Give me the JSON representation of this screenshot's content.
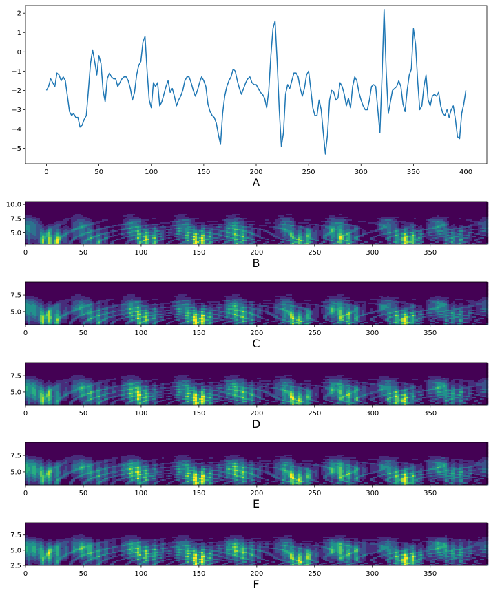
{
  "colormap": [
    "#440154",
    "#472d7b",
    "#3b528b",
    "#2c728e",
    "#21918c",
    "#28ae80",
    "#5ec962",
    "#addc30",
    "#fde725"
  ],
  "line_color": "#1f77b4",
  "chart_data": [
    {
      "type": "line",
      "panel_label": "A",
      "xlim": [
        -20,
        420
      ],
      "ylim": [
        -5.8,
        2.4
      ],
      "xticks": [
        0,
        50,
        100,
        150,
        200,
        250,
        300,
        350,
        400
      ],
      "yticks": [
        -5,
        -4,
        -3,
        -2,
        -1,
        0,
        1,
        2
      ],
      "grid": false,
      "series": [
        {
          "points": [
            [
              0,
              -2.0
            ],
            [
              2,
              -1.8
            ],
            [
              4,
              -1.4
            ],
            [
              6,
              -1.6
            ],
            [
              8,
              -1.8
            ],
            [
              10,
              -1.1
            ],
            [
              12,
              -1.2
            ],
            [
              14,
              -1.5
            ],
            [
              16,
              -1.3
            ],
            [
              18,
              -1.5
            ],
            [
              20,
              -2.3
            ],
            [
              22,
              -3.1
            ],
            [
              24,
              -3.3
            ],
            [
              26,
              -3.2
            ],
            [
              28,
              -3.4
            ],
            [
              30,
              -3.4
            ],
            [
              32,
              -3.9
            ],
            [
              34,
              -3.8
            ],
            [
              36,
              -3.5
            ],
            [
              38,
              -3.3
            ],
            [
              40,
              -2.0
            ],
            [
              42,
              -0.6
            ],
            [
              44,
              0.1
            ],
            [
              46,
              -0.5
            ],
            [
              48,
              -1.2
            ],
            [
              50,
              -0.2
            ],
            [
              52,
              -0.6
            ],
            [
              54,
              -2.0
            ],
            [
              56,
              -2.6
            ],
            [
              58,
              -1.4
            ],
            [
              60,
              -1.1
            ],
            [
              62,
              -1.3
            ],
            [
              64,
              -1.4
            ],
            [
              66,
              -1.4
            ],
            [
              68,
              -1.8
            ],
            [
              70,
              -1.6
            ],
            [
              72,
              -1.4
            ],
            [
              74,
              -1.3
            ],
            [
              76,
              -1.3
            ],
            [
              78,
              -1.5
            ],
            [
              80,
              -1.9
            ],
            [
              82,
              -2.5
            ],
            [
              84,
              -2.1
            ],
            [
              86,
              -1.2
            ],
            [
              88,
              -0.7
            ],
            [
              90,
              -0.5
            ],
            [
              92,
              0.5
            ],
            [
              94,
              0.8
            ],
            [
              96,
              -1.0
            ],
            [
              98,
              -2.5
            ],
            [
              100,
              -2.9
            ],
            [
              102,
              -1.6
            ],
            [
              104,
              -1.8
            ],
            [
              106,
              -1.6
            ],
            [
              108,
              -2.8
            ],
            [
              110,
              -2.6
            ],
            [
              112,
              -2.2
            ],
            [
              114,
              -1.8
            ],
            [
              116,
              -1.5
            ],
            [
              118,
              -2.1
            ],
            [
              120,
              -1.9
            ],
            [
              122,
              -2.3
            ],
            [
              124,
              -2.8
            ],
            [
              126,
              -2.5
            ],
            [
              128,
              -2.3
            ],
            [
              130,
              -2.0
            ],
            [
              132,
              -1.5
            ],
            [
              134,
              -1.3
            ],
            [
              136,
              -1.3
            ],
            [
              138,
              -1.6
            ],
            [
              140,
              -2.0
            ],
            [
              142,
              -2.3
            ],
            [
              144,
              -2.0
            ],
            [
              146,
              -1.6
            ],
            [
              148,
              -1.3
            ],
            [
              150,
              -1.5
            ],
            [
              152,
              -1.8
            ],
            [
              154,
              -2.7
            ],
            [
              156,
              -3.1
            ],
            [
              158,
              -3.3
            ],
            [
              160,
              -3.4
            ],
            [
              162,
              -3.7
            ],
            [
              164,
              -4.3
            ],
            [
              166,
              -4.8
            ],
            [
              168,
              -3.2
            ],
            [
              170,
              -2.3
            ],
            [
              172,
              -1.8
            ],
            [
              174,
              -1.5
            ],
            [
              176,
              -1.3
            ],
            [
              178,
              -0.9
            ],
            [
              180,
              -1.0
            ],
            [
              182,
              -1.5
            ],
            [
              184,
              -1.9
            ],
            [
              186,
              -2.2
            ],
            [
              188,
              -1.9
            ],
            [
              190,
              -1.6
            ],
            [
              192,
              -1.4
            ],
            [
              194,
              -1.3
            ],
            [
              196,
              -1.6
            ],
            [
              198,
              -1.7
            ],
            [
              200,
              -1.7
            ],
            [
              202,
              -1.9
            ],
            [
              204,
              -2.1
            ],
            [
              206,
              -2.2
            ],
            [
              208,
              -2.4
            ],
            [
              210,
              -2.9
            ],
            [
              212,
              -2.0
            ],
            [
              214,
              -0.2
            ],
            [
              216,
              1.2
            ],
            [
              218,
              1.6
            ],
            [
              220,
              -0.5
            ],
            [
              222,
              -3.0
            ],
            [
              224,
              -4.9
            ],
            [
              226,
              -4.2
            ],
            [
              228,
              -2.2
            ],
            [
              230,
              -1.7
            ],
            [
              232,
              -1.9
            ],
            [
              234,
              -1.5
            ],
            [
              236,
              -1.1
            ],
            [
              238,
              -1.1
            ],
            [
              240,
              -1.3
            ],
            [
              242,
              -1.9
            ],
            [
              244,
              -2.3
            ],
            [
              246,
              -1.9
            ],
            [
              248,
              -1.2
            ],
            [
              250,
              -1.0
            ],
            [
              252,
              -1.9
            ],
            [
              254,
              -2.9
            ],
            [
              256,
              -3.3
            ],
            [
              258,
              -3.3
            ],
            [
              260,
              -2.5
            ],
            [
              262,
              -3.0
            ],
            [
              264,
              -4.2
            ],
            [
              266,
              -5.3
            ],
            [
              268,
              -4.3
            ],
            [
              270,
              -2.5
            ],
            [
              272,
              -2.0
            ],
            [
              274,
              -2.1
            ],
            [
              276,
              -2.5
            ],
            [
              278,
              -2.4
            ],
            [
              280,
              -1.6
            ],
            [
              282,
              -1.8
            ],
            [
              284,
              -2.2
            ],
            [
              286,
              -2.8
            ],
            [
              288,
              -2.4
            ],
            [
              290,
              -2.9
            ],
            [
              292,
              -1.8
            ],
            [
              294,
              -1.3
            ],
            [
              296,
              -1.5
            ],
            [
              298,
              -2.1
            ],
            [
              300,
              -2.5
            ],
            [
              302,
              -2.8
            ],
            [
              304,
              -3.0
            ],
            [
              306,
              -3.0
            ],
            [
              308,
              -2.5
            ],
            [
              310,
              -1.8
            ],
            [
              312,
              -1.7
            ],
            [
              314,
              -1.8
            ],
            [
              316,
              -3.0
            ],
            [
              318,
              -4.2
            ],
            [
              320,
              -1.3
            ],
            [
              322,
              2.2
            ],
            [
              324,
              -1.0
            ],
            [
              326,
              -3.2
            ],
            [
              328,
              -2.6
            ],
            [
              330,
              -2.0
            ],
            [
              332,
              -1.9
            ],
            [
              334,
              -1.8
            ],
            [
              336,
              -1.5
            ],
            [
              338,
              -1.8
            ],
            [
              340,
              -2.7
            ],
            [
              342,
              -3.1
            ],
            [
              344,
              -2.0
            ],
            [
              346,
              -1.2
            ],
            [
              348,
              -0.9
            ],
            [
              350,
              1.2
            ],
            [
              352,
              0.4
            ],
            [
              354,
              -1.5
            ],
            [
              356,
              -3.0
            ],
            [
              358,
              -2.8
            ],
            [
              360,
              -1.8
            ],
            [
              362,
              -1.2
            ],
            [
              364,
              -2.5
            ],
            [
              366,
              -2.8
            ],
            [
              368,
              -2.3
            ],
            [
              370,
              -2.2
            ],
            [
              372,
              -2.3
            ],
            [
              374,
              -2.1
            ],
            [
              376,
              -2.8
            ],
            [
              378,
              -3.2
            ],
            [
              380,
              -3.3
            ],
            [
              382,
              -3.0
            ],
            [
              384,
              -3.4
            ],
            [
              386,
              -3.0
            ],
            [
              388,
              -2.8
            ],
            [
              390,
              -3.5
            ],
            [
              392,
              -4.4
            ],
            [
              394,
              -4.5
            ],
            [
              396,
              -3.2
            ],
            [
              398,
              -2.7
            ],
            [
              400,
              -2.0
            ]
          ]
        }
      ]
    },
    {
      "type": "heatmap",
      "panel_label": "B",
      "xlim": [
        0,
        399
      ],
      "ylim": [
        3.0,
        10.5
      ],
      "xticks": [
        0,
        50,
        100,
        150,
        200,
        250,
        300,
        350
      ],
      "yticks": [
        5.0,
        7.5,
        10.0
      ],
      "ytick_labels": [
        "5.0",
        "7.5",
        "10.0"
      ],
      "hotspots": [
        [
          22,
          3.6,
          0.9
        ],
        [
          60,
          3.8,
          0.5
        ],
        [
          105,
          3.8,
          0.8
        ],
        [
          150,
          3.6,
          0.95
        ],
        [
          185,
          4.0,
          0.6
        ],
        [
          238,
          3.6,
          0.75
        ],
        [
          275,
          3.9,
          0.7
        ],
        [
          330,
          3.6,
          0.9
        ],
        [
          372,
          4.0,
          0.5
        ]
      ]
    },
    {
      "type": "heatmap",
      "panel_label": "C",
      "xlim": [
        0,
        399
      ],
      "ylim": [
        3.0,
        9.5
      ],
      "xticks": [
        0,
        50,
        100,
        150,
        200,
        250,
        300,
        350
      ],
      "yticks": [
        5.0,
        7.5
      ],
      "ytick_labels": [
        "5.0",
        "7.5"
      ],
      "hotspots": [
        [
          20,
          4.0,
          0.85
        ],
        [
          62,
          4.2,
          0.55
        ],
        [
          102,
          4.0,
          0.75
        ],
        [
          150,
          3.6,
          1.0
        ],
        [
          188,
          4.3,
          0.6
        ],
        [
          235,
          3.6,
          0.8
        ],
        [
          278,
          4.2,
          0.7
        ],
        [
          328,
          3.6,
          0.9
        ],
        [
          372,
          4.3,
          0.5
        ]
      ]
    },
    {
      "type": "heatmap",
      "panel_label": "D",
      "xlim": [
        0,
        399
      ],
      "ylim": [
        3.0,
        9.5
      ],
      "xticks": [
        0,
        50,
        100,
        150,
        200,
        250,
        300,
        350
      ],
      "yticks": [
        5.0,
        7.5
      ],
      "ytick_labels": [
        "5.0",
        "7.5"
      ],
      "hotspots": [
        [
          18,
          4.2,
          0.8
        ],
        [
          60,
          4.4,
          0.55
        ],
        [
          100,
          4.2,
          0.75
        ],
        [
          150,
          3.8,
          1.0
        ],
        [
          190,
          4.5,
          0.6
        ],
        [
          235,
          3.7,
          0.85
        ],
        [
          280,
          4.4,
          0.7
        ],
        [
          325,
          3.8,
          0.85
        ],
        [
          370,
          4.5,
          0.55
        ]
      ]
    },
    {
      "type": "heatmap",
      "panel_label": "E",
      "xlim": [
        0,
        399
      ],
      "ylim": [
        3.0,
        9.5
      ],
      "xticks": [
        0,
        50,
        100,
        150,
        200,
        250,
        300,
        350
      ],
      "yticks": [
        5.0,
        7.5
      ],
      "ytick_labels": [
        "5.0",
        "7.5"
      ],
      "hotspots": [
        [
          18,
          4.5,
          0.75
        ],
        [
          62,
          4.6,
          0.5
        ],
        [
          100,
          4.4,
          0.7
        ],
        [
          150,
          3.8,
          1.0
        ],
        [
          188,
          4.6,
          0.6
        ],
        [
          235,
          3.8,
          0.85
        ],
        [
          278,
          4.6,
          0.65
        ],
        [
          328,
          3.8,
          0.9
        ],
        [
          372,
          4.6,
          0.55
        ]
      ]
    },
    {
      "type": "heatmap",
      "panel_label": "F",
      "xlim": [
        0,
        399
      ],
      "ylim": [
        2.5,
        9.5
      ],
      "xticks": [
        0,
        50,
        100,
        150,
        200,
        250,
        300,
        350
      ],
      "yticks": [
        2.5,
        5.0,
        7.5
      ],
      "ytick_labels": [
        "2.5",
        "5.0",
        "7.5"
      ],
      "hotspots": [
        [
          20,
          4.3,
          0.75
        ],
        [
          60,
          4.5,
          0.55
        ],
        [
          105,
          4.3,
          0.7
        ],
        [
          150,
          3.5,
          0.95
        ],
        [
          190,
          4.5,
          0.6
        ],
        [
          238,
          3.4,
          0.85
        ],
        [
          280,
          4.5,
          0.65
        ],
        [
          330,
          3.4,
          0.95
        ],
        [
          372,
          4.6,
          0.55
        ]
      ]
    }
  ]
}
